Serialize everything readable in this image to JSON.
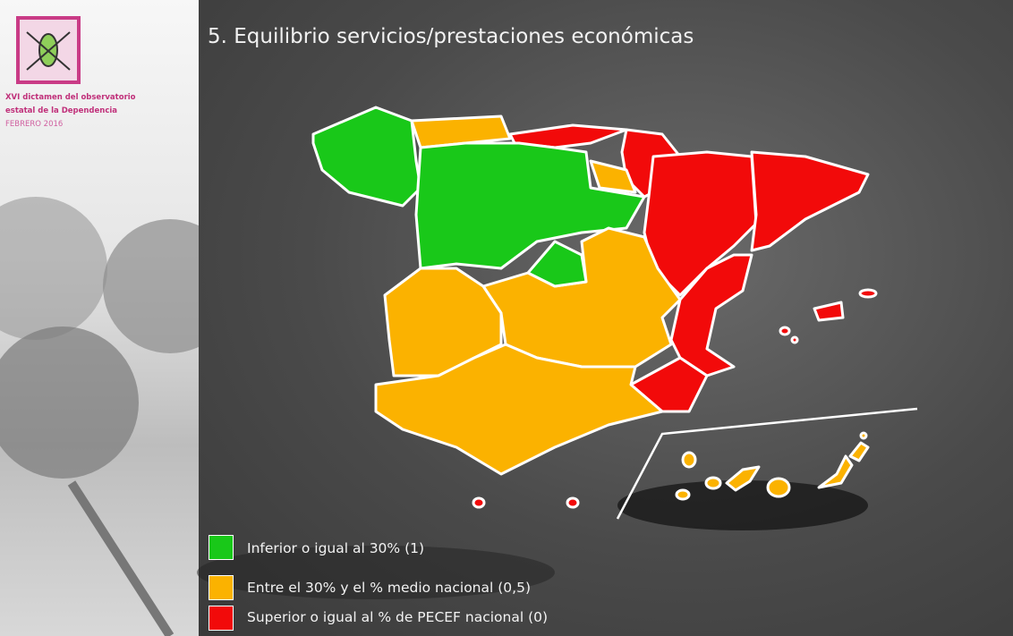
{
  "header": {
    "lines": [
      "XVI dictamen del observatorio",
      "estatal de la Dependencia",
      "FEBRERO 2016"
    ]
  },
  "title": "5. Equilibrio servicios/prestaciones económicas",
  "legend": [
    {
      "label": "Inferior o igual al 30% (1)",
      "color": "#19c819"
    },
    {
      "label": "Entre el 30% y el % medio nacional (0,5)",
      "color": "#fbb200"
    },
    {
      "label": "Superior o igual al % de PECEF nacional (0)",
      "color": "#f20a0a"
    }
  ]
}
